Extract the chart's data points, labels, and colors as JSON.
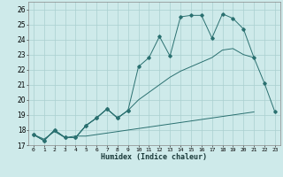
{
  "xlabel": "Humidex (Indice chaleur)",
  "x": [
    0,
    1,
    2,
    3,
    4,
    5,
    6,
    7,
    8,
    9,
    10,
    11,
    12,
    13,
    14,
    15,
    16,
    17,
    18,
    19,
    20,
    21,
    22,
    23
  ],
  "line_jagged": [
    17.7,
    17.3,
    18.0,
    17.5,
    17.5,
    18.3,
    18.8,
    19.4,
    18.8,
    19.3,
    null,
    null,
    null,
    null,
    null,
    null,
    null,
    null,
    null,
    null,
    null,
    null,
    null,
    null
  ],
  "line_peak": [
    17.7,
    17.3,
    18.0,
    17.5,
    17.5,
    18.3,
    18.8,
    19.4,
    18.8,
    19.3,
    22.2,
    22.8,
    24.2,
    22.9,
    25.5,
    25.6,
    25.6,
    24.1,
    25.7,
    25.4,
    24.7,
    22.8,
    21.1,
    19.2
  ],
  "line_mid": [
    17.7,
    17.3,
    18.0,
    17.5,
    17.5,
    18.3,
    18.8,
    19.4,
    18.8,
    19.3,
    20.0,
    20.5,
    21.0,
    21.5,
    21.9,
    22.2,
    22.5,
    22.8,
    23.3,
    23.4,
    23.0,
    22.8,
    null,
    null
  ],
  "line_base": [
    17.7,
    17.4,
    17.9,
    17.5,
    17.6,
    17.6,
    17.7,
    17.8,
    17.9,
    18.0,
    18.1,
    18.2,
    18.3,
    18.4,
    18.5,
    18.6,
    18.7,
    18.8,
    18.9,
    19.0,
    19.1,
    19.2,
    null,
    null
  ],
  "color": "#2a7070",
  "bg_color": "#ceeaea",
  "grid_color": "#aacfcf",
  "ylim": [
    17,
    26.5
  ],
  "xlim": [
    -0.5,
    23.5
  ],
  "yticks": [
    17,
    18,
    19,
    20,
    21,
    22,
    23,
    24,
    25,
    26
  ],
  "xticks": [
    0,
    1,
    2,
    3,
    4,
    5,
    6,
    7,
    8,
    9,
    10,
    11,
    12,
    13,
    14,
    15,
    16,
    17,
    18,
    19,
    20,
    21,
    22,
    23
  ]
}
